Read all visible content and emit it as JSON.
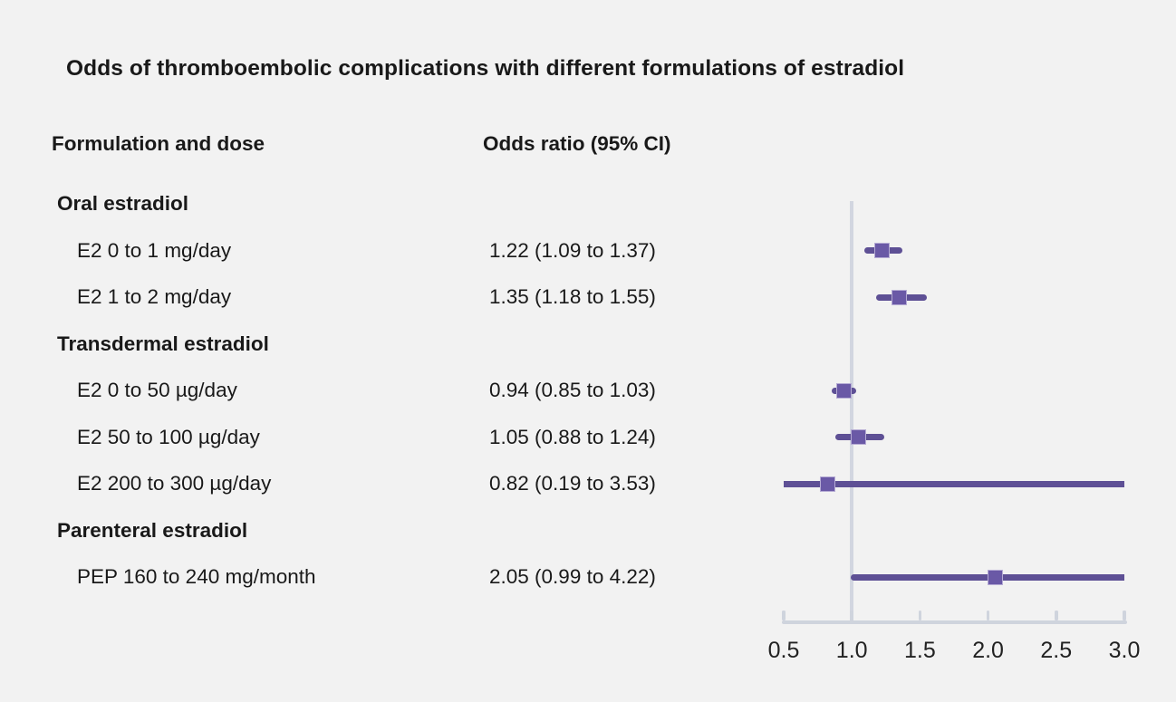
{
  "title": "Odds of thromboembolic complications with different formulations of estradiol",
  "columns": {
    "formulation": "Formulation and dose",
    "odds_ratio": "Odds ratio (95% CI)"
  },
  "colors": {
    "background": "#f2f2f2",
    "text": "#191919",
    "marker_fill": "#6a59a6",
    "ci_line": "#5e5095",
    "axis": "#cfd4dd",
    "reference_line": "#d2d6e0"
  },
  "chart_data": {
    "type": "forest",
    "title": "Odds of thromboembolic complications with different formulations of estradiol",
    "xlim": [
      0.5,
      3.0
    ],
    "reference_value": 1.0,
    "tick_values": [
      0.5,
      1.0,
      1.5,
      2.0,
      2.5,
      3.0
    ],
    "tick_labels": [
      "0.5",
      "1.0",
      "1.5",
      "2.0",
      "2.5",
      "3.0"
    ],
    "grid": false,
    "legend": false,
    "rows": [
      {
        "type": "group",
        "label": "Oral estradiol"
      },
      {
        "type": "item",
        "label": "E2 0 to 1 mg/day",
        "value_text": "1.22 (1.09 to 1.37)",
        "or": 1.22,
        "ci_low": 1.09,
        "ci_high": 1.37
      },
      {
        "type": "item",
        "label": "E2 1 to 2 mg/day",
        "value_text": "1.35 (1.18 to 1.55)",
        "or": 1.35,
        "ci_low": 1.18,
        "ci_high": 1.55
      },
      {
        "type": "group",
        "label": "Transdermal estradiol"
      },
      {
        "type": "item",
        "label": "E2 0 to 50 µg/day",
        "value_text": "0.94 (0.85 to 1.03)",
        "or": 0.94,
        "ci_low": 0.85,
        "ci_high": 1.03
      },
      {
        "type": "item",
        "label": "E2 50 to 100 µg/day",
        "value_text": "1.05 (0.88 to 1.24)",
        "or": 1.05,
        "ci_low": 0.88,
        "ci_high": 1.24
      },
      {
        "type": "item",
        "label": "E2 200 to 300 µg/day",
        "value_text": "0.82 (0.19 to 3.53)",
        "or": 0.82,
        "ci_low": 0.19,
        "ci_high": 3.53
      },
      {
        "type": "group",
        "label": "Parenteral estradiol"
      },
      {
        "type": "item",
        "label": "PEP 160 to 240 mg/month",
        "value_text": "2.05 (0.99 to 4.22)",
        "or": 2.05,
        "ci_low": 0.99,
        "ci_high": 4.22
      }
    ]
  }
}
